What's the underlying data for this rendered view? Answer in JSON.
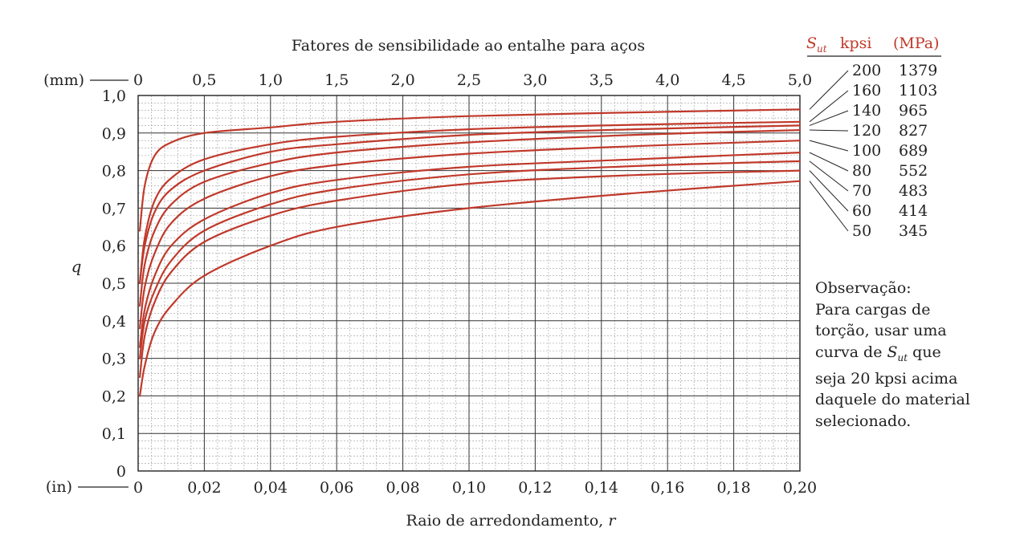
{
  "chart_data": {
    "type": "line",
    "title": "Fatores de sensibilidade ao entalhe para aços",
    "xlabel": "Raio de arredondamento,",
    "xlabel_var": "r",
    "ylabel": "q",
    "x_unit_bottom": "(in)",
    "x_unit_top": "(mm)",
    "xlim": [
      0,
      0.2
    ],
    "ylim": [
      0,
      1.0
    ],
    "grid": true,
    "x_ticks": [
      "0",
      "0,02",
      "0,04",
      "0,06",
      "0,08",
      "0,10",
      "0,12",
      "0,14",
      "0,16",
      "0,18",
      "0,20"
    ],
    "x_ticks_top": [
      "0",
      "0,5",
      "1,0",
      "1,5",
      "2,0",
      "2,5",
      "3,0",
      "3,5",
      "4,0",
      "4,5",
      "5,0"
    ],
    "y_ticks": [
      "0",
      "0,1",
      "0,2",
      "0,3",
      "0,4",
      "0,5",
      "0,6",
      "0,7",
      "0,8",
      "0,9",
      "1,0"
    ],
    "legend_header": {
      "sym": "S",
      "sub": "ut",
      "kpsi": "kpsi",
      "mpa": "(MPa)"
    },
    "legend_position": "right",
    "line_color": "#c0392b",
    "series": [
      {
        "name": "200",
        "mpa": "1379",
        "x": [
          0.0005,
          0.002,
          0.005,
          0.01,
          0.02,
          0.04,
          0.06,
          0.1,
          0.15,
          0.2
        ],
        "y": [
          0.64,
          0.76,
          0.84,
          0.875,
          0.9,
          0.915,
          0.93,
          0.945,
          0.955,
          0.963
        ]
      },
      {
        "name": "160",
        "mpa": "1103",
        "x": [
          0.0005,
          0.002,
          0.005,
          0.01,
          0.02,
          0.04,
          0.06,
          0.1,
          0.15,
          0.2
        ],
        "y": [
          0.5,
          0.62,
          0.72,
          0.78,
          0.83,
          0.87,
          0.89,
          0.91,
          0.922,
          0.93
        ]
      },
      {
        "name": "140",
        "mpa": "965",
        "x": [
          0.0005,
          0.002,
          0.005,
          0.01,
          0.02,
          0.04,
          0.06,
          0.1,
          0.15,
          0.2
        ],
        "y": [
          0.5,
          0.6,
          0.69,
          0.75,
          0.8,
          0.85,
          0.87,
          0.895,
          0.91,
          0.92
        ]
      },
      {
        "name": "120",
        "mpa": "827",
        "x": [
          0.0005,
          0.002,
          0.005,
          0.01,
          0.02,
          0.04,
          0.06,
          0.1,
          0.15,
          0.2
        ],
        "y": [
          0.44,
          0.55,
          0.64,
          0.71,
          0.77,
          0.82,
          0.848,
          0.875,
          0.895,
          0.908
        ]
      },
      {
        "name": "100",
        "mpa": "689",
        "x": [
          0.0005,
          0.002,
          0.005,
          0.01,
          0.02,
          0.04,
          0.06,
          0.1,
          0.15,
          0.2
        ],
        "y": [
          0.38,
          0.49,
          0.58,
          0.66,
          0.725,
          0.785,
          0.815,
          0.845,
          0.865,
          0.88
        ]
      },
      {
        "name": "80",
        "mpa": "552",
        "x": [
          0.0005,
          0.002,
          0.005,
          0.01,
          0.02,
          0.04,
          0.06,
          0.1,
          0.15,
          0.2
        ],
        "y": [
          0.33,
          0.43,
          0.52,
          0.6,
          0.67,
          0.74,
          0.775,
          0.81,
          0.83,
          0.848
        ]
      },
      {
        "name": "70",
        "mpa": "483",
        "x": [
          0.0005,
          0.002,
          0.005,
          0.01,
          0.02,
          0.04,
          0.06,
          0.1,
          0.15,
          0.2
        ],
        "y": [
          0.3,
          0.4,
          0.48,
          0.56,
          0.64,
          0.71,
          0.75,
          0.79,
          0.812,
          0.825
        ]
      },
      {
        "name": "60",
        "mpa": "414",
        "x": [
          0.0005,
          0.002,
          0.005,
          0.01,
          0.02,
          0.04,
          0.06,
          0.1,
          0.15,
          0.2
        ],
        "y": [
          0.25,
          0.36,
          0.45,
          0.53,
          0.61,
          0.68,
          0.72,
          0.765,
          0.788,
          0.8
        ]
      },
      {
        "name": "50",
        "mpa": "345",
        "x": [
          0.0005,
          0.002,
          0.005,
          0.01,
          0.02,
          0.04,
          0.06,
          0.1,
          0.15,
          0.2
        ],
        "y": [
          0.2,
          0.28,
          0.37,
          0.44,
          0.52,
          0.6,
          0.65,
          0.7,
          0.74,
          0.772
        ]
      }
    ],
    "note": {
      "line1": "Observação:",
      "line2": "Para cargas de",
      "line3": "torção, usar uma",
      "line4a": "curva de",
      "line4sym": "S",
      "line4sub": "ut",
      "line4b": "que",
      "line5": "seja 20 kpsi acima",
      "line6": "daquele do material",
      "line7": "selecionado."
    }
  }
}
